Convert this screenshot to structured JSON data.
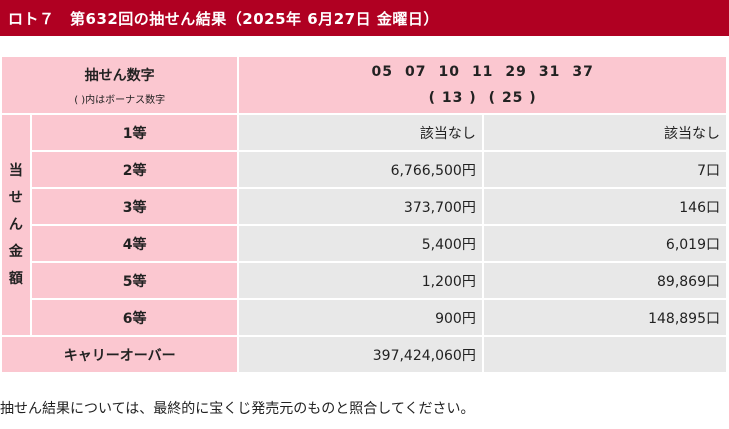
{
  "header": {
    "title": "ロト７　第632回の抽せん結果（2025年 6月27日 金曜日）"
  },
  "draw": {
    "label": "抽せん数字",
    "note": "( )内はボーナス数字",
    "main_numbers": [
      "05",
      "07",
      "10",
      "11",
      "29",
      "31",
      "37"
    ],
    "bonus_numbers": [
      "( 13 )",
      "( 25 )"
    ]
  },
  "side_label": [
    "当",
    "せ",
    "ん",
    "金",
    "額"
  ],
  "prizes": [
    {
      "grade": "1等",
      "amount": "該当なし",
      "count": "該当なし"
    },
    {
      "grade": "2等",
      "amount": "6,766,500円",
      "count": "7口"
    },
    {
      "grade": "3等",
      "amount": "373,700円",
      "count": "146口"
    },
    {
      "grade": "4等",
      "amount": "5,400円",
      "count": "6,019口"
    },
    {
      "grade": "5等",
      "amount": "1,200円",
      "count": "89,869口"
    },
    {
      "grade": "6等",
      "amount": "900円",
      "count": "148,895口"
    }
  ],
  "carryover": {
    "label": "キャリーオーバー",
    "amount": "397,424,060円"
  },
  "footer": {
    "note": "抽せん結果については、最終的に宝くじ発売元のものと照合してください。"
  },
  "colors": {
    "header_bg": "#b00022",
    "label_bg": "#fbc7d0",
    "value_bg": "#e8e8e8"
  }
}
